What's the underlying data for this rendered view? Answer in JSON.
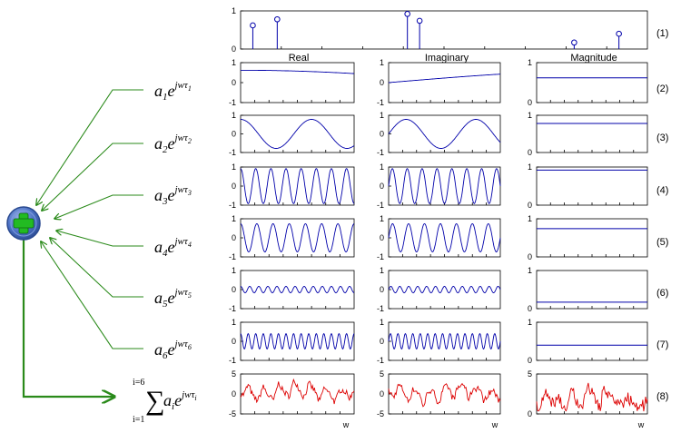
{
  "headers": {
    "real": "Real",
    "imaginary": "Imaginary",
    "magnitude": "Magnitude"
  },
  "row_labels": [
    "(1)",
    "(2)",
    "(3)",
    "(4)",
    "(5)",
    "(6)",
    "(7)",
    "(8)"
  ],
  "x_axis_label": "w",
  "terms": [
    {
      "coef": "a",
      "idx": "1",
      "exp": "jwτ",
      "expidx": "1"
    },
    {
      "coef": "a",
      "idx": "2",
      "exp": "jwτ",
      "expidx": "2"
    },
    {
      "coef": "a",
      "idx": "3",
      "exp": "jwτ",
      "expidx": "3"
    },
    {
      "coef": "a",
      "idx": "4",
      "exp": "jwτ",
      "expidx": "4"
    },
    {
      "coef": "a",
      "idx": "5",
      "exp": "jwτ",
      "expidx": "5"
    },
    {
      "coef": "a",
      "idx": "6",
      "exp": "jwτ",
      "expidx": "6"
    }
  ],
  "sum_term": {
    "sigma": "∑",
    "upper": "i=6",
    "lower": "i=1",
    "coef": "a",
    "idx": "i",
    "exp": "jwτ",
    "expidx": "i"
  },
  "colors": {
    "signal": "#0000aa",
    "sum": "#dd0000",
    "arrow": "#2a8a1a",
    "node": "#3a63b8",
    "plus": "#22bb22"
  },
  "chart_data": [
    {
      "type": "stem",
      "row": "(1)",
      "ylim": [
        0,
        1
      ],
      "yticks": [
        "0",
        "1"
      ],
      "points": [
        {
          "x": 0.03,
          "y": 0.62
        },
        {
          "x": 0.09,
          "y": 0.78
        },
        {
          "x": 0.41,
          "y": 0.92
        },
        {
          "x": 0.44,
          "y": 0.74
        },
        {
          "x": 0.82,
          "y": 0.17
        },
        {
          "x": 0.93,
          "y": 0.4
        }
      ]
    },
    {
      "type": "line",
      "rows": [
        "(2)",
        "(3)",
        "(4)",
        "(5)",
        "(6)",
        "(7)"
      ],
      "panels": [
        "Real",
        "Imaginary",
        "Magnitude"
      ],
      "real_imag_ylim": [
        -1,
        1
      ],
      "real_imag_yticks": [
        "1",
        "0",
        "-1"
      ],
      "magnitude_ylim": [
        0,
        1
      ],
      "magnitude_yticks": [
        "1",
        "0"
      ],
      "series": [
        {
          "term": 1,
          "amplitude": 0.62,
          "cycles": 0.12
        },
        {
          "term": 2,
          "amplitude": 0.78,
          "cycles": 1.6
        },
        {
          "term": 3,
          "amplitude": 0.92,
          "cycles": 7.5
        },
        {
          "term": 4,
          "amplitude": 0.74,
          "cycles": 7.0
        },
        {
          "term": 5,
          "amplitude": 0.17,
          "cycles": 12.5
        },
        {
          "term": 6,
          "amplitude": 0.4,
          "cycles": 15.0
        }
      ]
    },
    {
      "type": "line",
      "row": "(8)",
      "panels": [
        "Real",
        "Imaginary",
        "Magnitude"
      ],
      "real_imag_ylim": [
        -5,
        5
      ],
      "real_imag_yticks": [
        "5",
        "0",
        "-5"
      ],
      "magnitude_ylim": [
        0,
        5
      ],
      "magnitude_yticks": [
        "5",
        "0"
      ]
    }
  ]
}
